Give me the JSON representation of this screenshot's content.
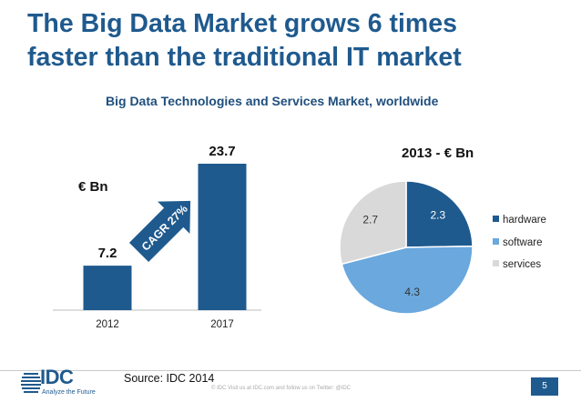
{
  "slide": {
    "title_line1": "The Big Data Market grows 6 times",
    "title_line2": "faster than the traditional IT market",
    "subtitle": "Big Data Technologies and Services Market, worldwide",
    "source": "Source: IDC 2014",
    "copyright": "© IDC  Visit us at IDC.com and follow us on Twitter: @IDC",
    "page_number": "5",
    "logo_text": "IDC",
    "logo_tagline": "Analyze the Future",
    "cagr_label": "CAGR 27%"
  },
  "colors": {
    "title": "#1f5a8e",
    "bar": "#1f5a8e",
    "hardware": "#1f5a8e",
    "software": "#6aa8de",
    "services": "#d9d9d9",
    "arrow": "#1f5a8e"
  },
  "chart_data": [
    {
      "type": "bar",
      "title": "",
      "ylabel": "€ Bn",
      "categories": [
        "2012",
        "2017"
      ],
      "values": [
        7.2,
        23.7
      ],
      "value_labels": [
        "7.2",
        "23.7"
      ],
      "ylim": [
        0,
        23.7
      ],
      "grid": false,
      "annotation": "CAGR 27%"
    },
    {
      "type": "pie",
      "title": "2013 - € Bn",
      "labels": [
        "hardware",
        "software",
        "services"
      ],
      "values": [
        2.3,
        4.3,
        2.7
      ],
      "value_labels": [
        "2.3",
        "4.3",
        "2.7"
      ],
      "legend": "right"
    }
  ]
}
